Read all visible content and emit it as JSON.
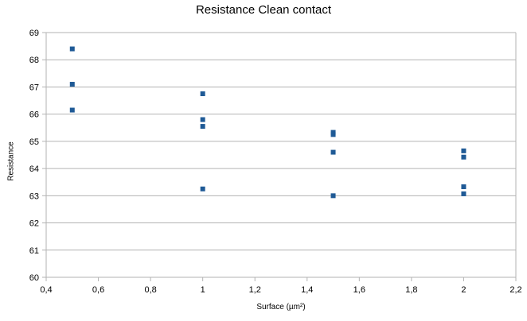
{
  "chart_data": {
    "type": "scatter",
    "title": "Resistance Clean contact",
    "xlabel": "Surface (µm²)",
    "ylabel": "Resistance",
    "xlim": [
      0.4,
      2.2
    ],
    "ylim": [
      60,
      69
    ],
    "x_ticks": [
      "0,4",
      "0,6",
      "0,8",
      "1",
      "1,2",
      "1,4",
      "1,6",
      "1,8",
      "2",
      "2,2"
    ],
    "y_ticks": [
      "60",
      "61",
      "62",
      "63",
      "64",
      "65",
      "66",
      "67",
      "68",
      "69"
    ],
    "grid": "horizontal",
    "marker_color": "#1f5a96",
    "points": [
      {
        "x": 0.5,
        "y": 68.4
      },
      {
        "x": 0.5,
        "y": 67.1
      },
      {
        "x": 0.5,
        "y": 66.15
      },
      {
        "x": 1.0,
        "y": 66.75
      },
      {
        "x": 1.0,
        "y": 65.8
      },
      {
        "x": 1.0,
        "y": 65.55
      },
      {
        "x": 1.0,
        "y": 63.25
      },
      {
        "x": 1.5,
        "y": 65.33
      },
      {
        "x": 1.5,
        "y": 65.25
      },
      {
        "x": 1.5,
        "y": 64.6
      },
      {
        "x": 1.5,
        "y": 63.0
      },
      {
        "x": 2.0,
        "y": 64.65
      },
      {
        "x": 2.0,
        "y": 64.42
      },
      {
        "x": 2.0,
        "y": 63.33
      },
      {
        "x": 2.0,
        "y": 63.07
      }
    ]
  }
}
